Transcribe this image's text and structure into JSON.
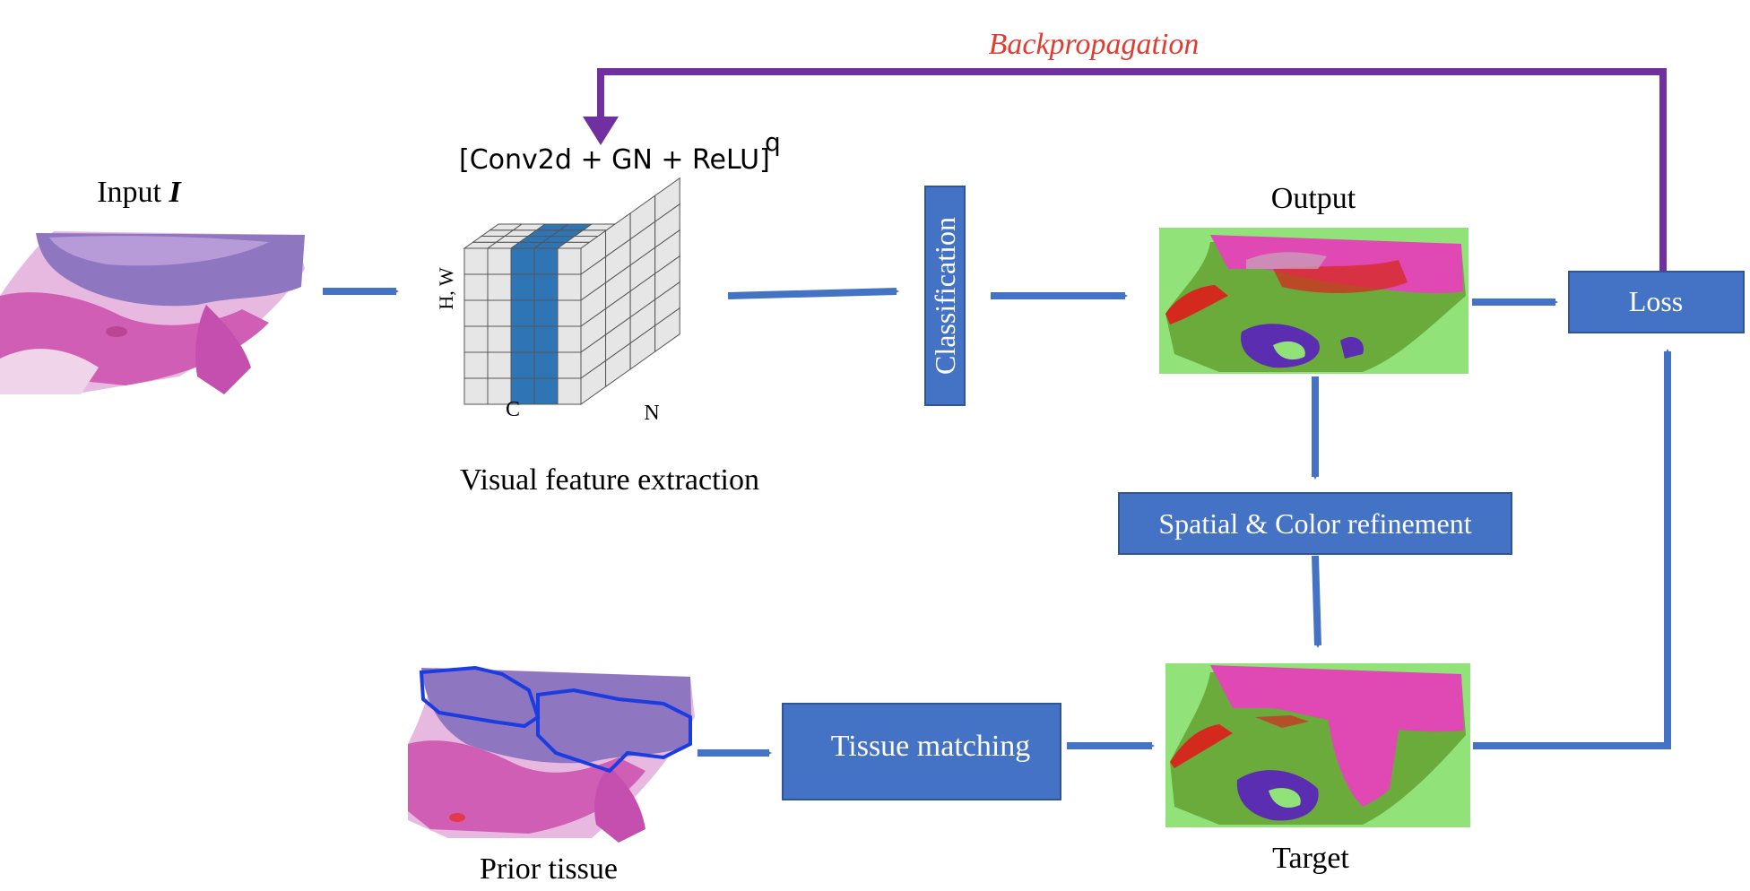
{
  "colors": {
    "arrow_blue": "#4472C4",
    "box_blue": "#4472C4",
    "box_border": "#2F5597",
    "backprop_purple": "#7030A0",
    "backprop_text": "#E03C31",
    "cube_cell": "#E6E6E6",
    "cube_highlight": "#2E75B6",
    "seg_green_light": "#92E27A",
    "seg_green_dark": "#6AAB3C",
    "seg_pink": "#E048B4",
    "seg_red": "#D42A1E",
    "seg_purple": "#5B2DB0",
    "tissue_pink": "#D77FC8",
    "tissue_purple": "#9A78C6",
    "contour_blue": "#1A3CE0"
  },
  "labels": {
    "input": "Input",
    "input_symbol": "I",
    "conv_block": "[Conv2d + GN + ReLU]",
    "conv_exponent": "q",
    "axis_hw": "H, W",
    "axis_c": "C",
    "axis_n": "N",
    "feature_extraction": "Visual feature extraction",
    "classification": "Classification",
    "output": "Output",
    "loss": "Loss",
    "backpropagation": "Backpropagation",
    "refinement": "Spatial & Color refinement",
    "tissue_matching": "Tissue matching",
    "prior_tissue": "Prior tissue",
    "target": "Target"
  },
  "icons": {
    "input_image": "he-stained-tissue-image",
    "prior_image": "tissue-with-blue-contour",
    "output_image": "segmentation-map",
    "target_image": "segmentation-map",
    "feature_cube": "3d-grid-cube"
  }
}
